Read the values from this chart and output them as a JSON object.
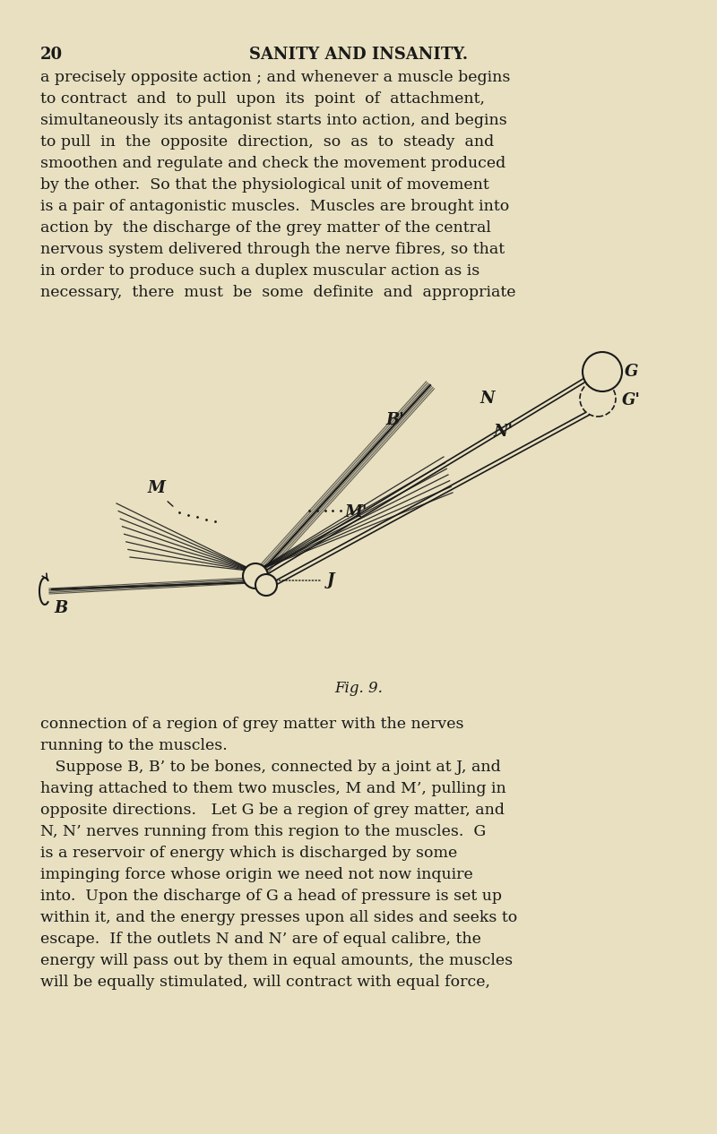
{
  "bg_color": "#e8e0c0",
  "text_color": "#1a1a1a",
  "page_number": "20",
  "header": "SANITY AND INSANITY.",
  "body_text_top": [
    "a precisely opposite action ; and whenever a muscle begins",
    "to contract  and  to pull  upon  its  point  of  attachment,",
    "simultaneously its antagonist starts into action, and begins",
    "to pull  in  the  opposite  direction,  so  as  to  steady  and",
    "smoothen and regulate and check the movement produced",
    "by the other.  So that the physiological unit of movement",
    "is a pair of antagonistic muscles.  Muscles are brought into",
    "action by  the discharge of the grey matter of the central",
    "nervous system delivered through the nerve fibres, so that",
    "in order to produce such a duplex muscular action as is",
    "necessary,  there  must  be  some  definite  and  appropriate"
  ],
  "fig_caption": "Fig. 9.",
  "body_text_bottom": [
    "connection of a region of grey matter with the nerves",
    "running to the muscles.",
    "   Suppose B, B’ to be bones, connected by a joint at J, and",
    "having attached to them two muscles, M and M’, pulling in",
    "opposite directions.   Let G be a region of grey matter, and",
    "N, N’ nerves running from this region to the muscles.  G",
    "is a reservoir of energy which is discharged by some",
    "impinging force whose origin we need not now inquire",
    "into.  Upon the discharge of G a head of pressure is set up",
    "within it, and the energy presses upon all sides and seeks to",
    "escape.  If the outlets N and N’ are of equal calibre, the",
    "energy will pass out by them in equal amounts, the muscles",
    "will be equally stimulated, will contract with equal force,"
  ]
}
